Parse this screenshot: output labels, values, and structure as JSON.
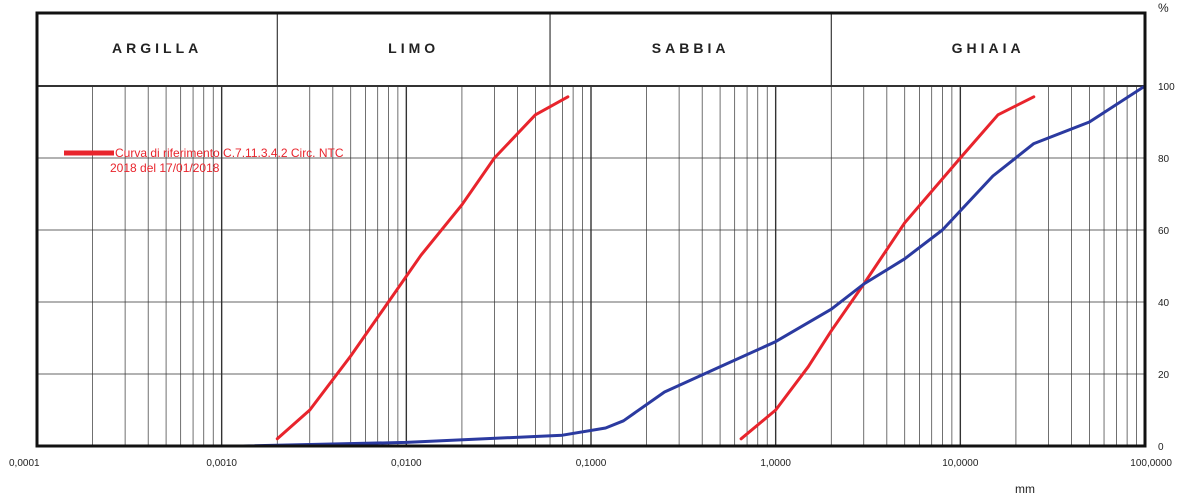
{
  "chart_data": {
    "type": "line",
    "x_scale": "log",
    "xlim": [
      0.0001,
      100
    ],
    "ylim": [
      0,
      100
    ],
    "y_unit": "%",
    "x_unit": "mm",
    "x_ticks": [
      {
        "value": 0.0001,
        "label": "0,0001"
      },
      {
        "value": 0.001,
        "label": "0,0010"
      },
      {
        "value": 0.01,
        "label": "0,0100"
      },
      {
        "value": 0.1,
        "label": "0,1000"
      },
      {
        "value": 1,
        "label": "1,0000"
      },
      {
        "value": 10,
        "label": "10,0000"
      },
      {
        "value": 100,
        "label": "100,0000"
      }
    ],
    "y_ticks": [
      {
        "value": 0,
        "label": "0"
      },
      {
        "value": 20,
        "label": "20"
      },
      {
        "value": 40,
        "label": "40"
      },
      {
        "value": 60,
        "label": "60"
      },
      {
        "value": 80,
        "label": "80"
      },
      {
        "value": 100,
        "label": "100"
      }
    ],
    "zones": [
      {
        "label": "ARGILLA",
        "from": 0.0001,
        "to": 0.002
      },
      {
        "label": "LIMO",
        "from": 0.002,
        "to": 0.06
      },
      {
        "label": "SABBIA",
        "from": 0.06,
        "to": 2
      },
      {
        "label": "GHIAIA",
        "from": 2,
        "to": 100
      }
    ],
    "grid": true,
    "legend": {
      "position": "top-left",
      "color": "#e8242c",
      "lines": [
        "Curva di riferimento C.7.11.3.4.2 Circ. NTC",
        "2018 del 17/01/2018"
      ]
    },
    "series": [
      {
        "name": "Curva di riferimento C.7.11.3.4.2 Circ. NTC 2018 del 17/01/2018",
        "role": "fine-limit",
        "color": "#e8242c",
        "points": [
          [
            0.002,
            2
          ],
          [
            0.003,
            10
          ],
          [
            0.005,
            25
          ],
          [
            0.008,
            40
          ],
          [
            0.012,
            53
          ],
          [
            0.02,
            67
          ],
          [
            0.03,
            80
          ],
          [
            0.05,
            92
          ],
          [
            0.075,
            97
          ]
        ]
      },
      {
        "name": "Curva di riferimento C.7.11.3.4.2 Circ. NTC 2018 del 17/01/2018",
        "role": "coarse-limit",
        "color": "#e8242c",
        "points": [
          [
            0.65,
            2
          ],
          [
            1.0,
            10
          ],
          [
            1.5,
            22
          ],
          [
            2.0,
            32
          ],
          [
            3.0,
            45
          ],
          [
            5.0,
            62
          ],
          [
            10.0,
            80
          ],
          [
            16.0,
            92
          ],
          [
            25.0,
            97
          ]
        ]
      },
      {
        "name": "",
        "role": "sample",
        "color": "#2b3aa0",
        "points": [
          [
            0.0013,
            0
          ],
          [
            0.01,
            1
          ],
          [
            0.07,
            3
          ],
          [
            0.12,
            5
          ],
          [
            0.15,
            7
          ],
          [
            0.25,
            15
          ],
          [
            0.5,
            22
          ],
          [
            1.0,
            29
          ],
          [
            2.0,
            38
          ],
          [
            3.0,
            45
          ],
          [
            5.0,
            52
          ],
          [
            8.0,
            60
          ],
          [
            15.0,
            75
          ],
          [
            25.0,
            84
          ],
          [
            50.0,
            90
          ],
          [
            100.0,
            100
          ]
        ]
      }
    ]
  }
}
